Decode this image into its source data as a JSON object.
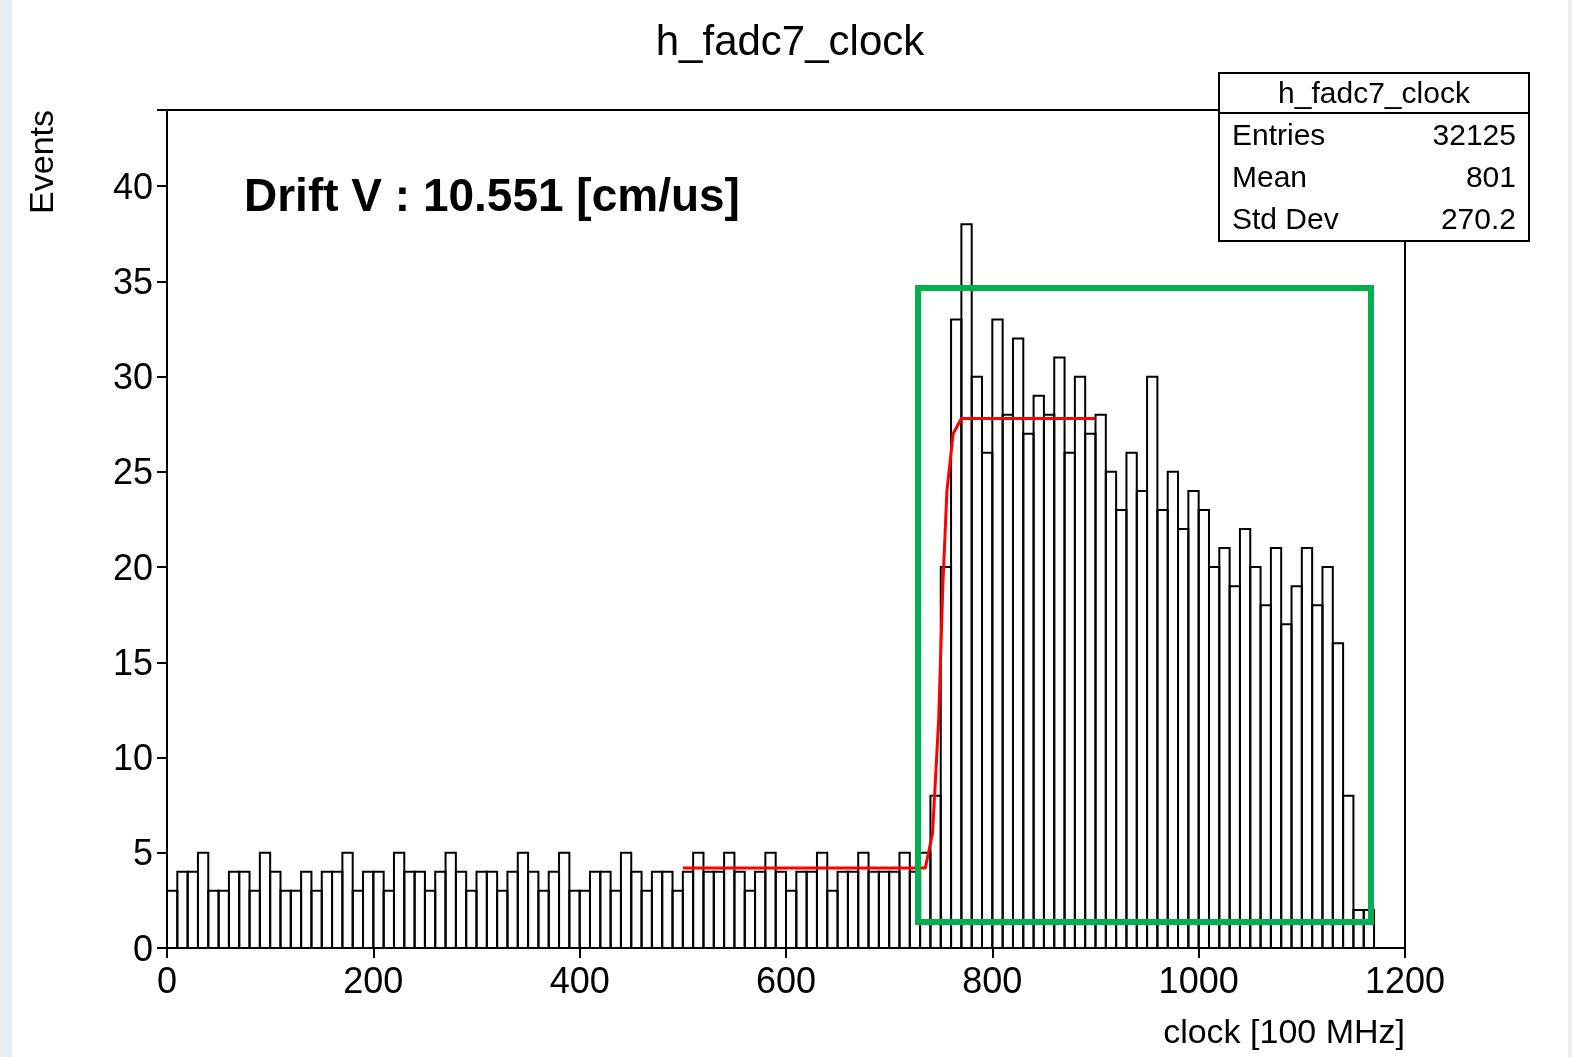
{
  "chart_data": {
    "type": "histogram",
    "title": "h_fadc7_clock",
    "xlabel": "clock [100 MHz]",
    "ylabel": "Events",
    "annotations": [
      "Drift V : 10.551 [cm/us]",
      "h_fadc7_clock",
      "Entries",
      "32125",
      "Mean",
      "801",
      "Std Dev",
      "270.2"
    ],
    "bins": [
      0,
      10,
      20,
      30,
      40,
      50,
      60,
      70,
      80,
      90,
      100,
      110,
      120,
      130,
      140,
      150,
      160,
      170,
      180,
      190,
      200,
      210,
      220,
      230,
      240,
      250,
      260,
      270,
      280,
      290,
      300,
      310,
      320,
      330,
      340,
      350,
      360,
      370,
      380,
      390,
      400,
      410,
      420,
      430,
      440,
      450,
      460,
      470,
      480,
      490,
      500,
      510,
      520,
      530,
      540,
      550,
      560,
      570,
      580,
      590,
      600,
      610,
      620,
      630,
      640,
      650,
      660,
      670,
      680,
      690,
      700,
      710,
      720,
      730,
      740,
      750,
      760,
      770,
      780,
      790,
      800,
      810,
      820,
      830,
      840,
      850,
      860,
      870,
      880,
      890,
      900,
      910,
      920,
      930,
      940,
      950,
      960,
      970,
      980,
      990,
      1000,
      1010,
      1020,
      1030,
      1040,
      1050,
      1060,
      1070,
      1080,
      1090,
      1100,
      1110,
      1120,
      1130,
      1140,
      1150,
      1160,
      1170,
      1180,
      1190,
      1200
    ],
    "values": [
      3,
      4,
      4,
      5,
      3,
      3,
      4,
      4,
      3,
      5,
      4,
      3,
      3,
      4,
      3,
      4,
      4,
      5,
      3,
      4,
      4,
      3,
      5,
      4,
      4,
      3,
      4,
      5,
      4,
      3,
      4,
      4,
      3,
      4,
      5,
      4,
      3,
      4,
      5,
      3,
      3,
      4,
      4,
      3,
      5,
      4,
      3,
      4,
      4,
      3,
      4,
      5,
      4,
      4,
      5,
      4,
      3,
      4,
      5,
      4,
      3,
      4,
      4,
      5,
      3,
      4,
      4,
      5,
      4,
      4,
      4,
      5,
      4,
      5,
      8,
      20,
      33,
      38,
      30,
      26,
      33,
      28,
      32,
      27,
      29,
      28,
      31,
      26,
      30,
      27,
      28,
      25,
      23,
      26,
      24,
      30,
      23,
      25,
      22,
      24,
      23,
      20,
      21,
      19,
      22,
      20,
      18,
      21,
      17,
      19,
      21,
      18,
      20,
      16,
      8,
      2,
      2,
      0,
      0,
      0
    ],
    "color": "#000000",
    "series": [
      {
        "type": "line",
        "color": "#ff0000",
        "x": [
          500,
          735,
          742,
          748,
          752,
          756,
          762,
          770,
          900
        ],
        "values": [
          4.2,
          4.2,
          6,
          12,
          19,
          24,
          27,
          27.8,
          27.8
        ],
        "marker": "none",
        "line_style": "solid"
      }
    ],
    "xlim": [
      0,
      1200
    ],
    "xticks": [
      0,
      200,
      400,
      600,
      800,
      1000,
      1200
    ],
    "ylim": [
      0,
      44
    ],
    "yticks": [
      0,
      5,
      10,
      15,
      20,
      25,
      30,
      35,
      40
    ],
    "grid": false
  }
}
